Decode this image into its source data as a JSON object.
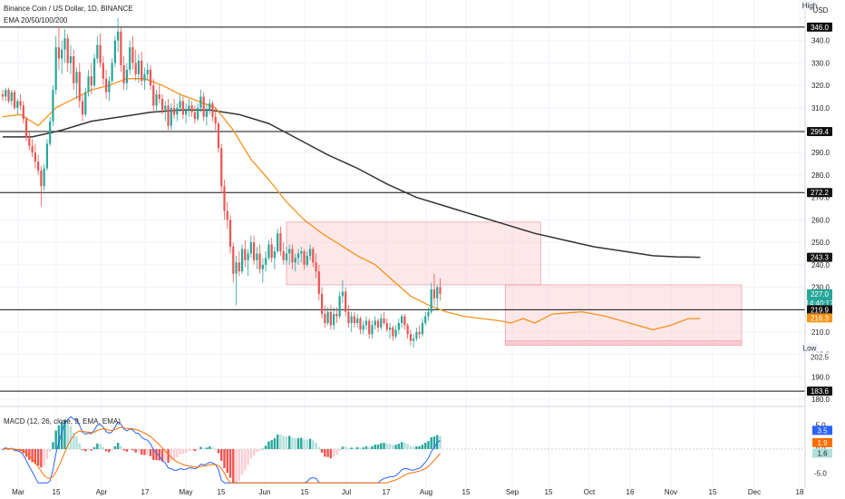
{
  "header": {
    "title": "Binance Coin / US Dollar, 1D, BINANCE",
    "indicator": "EMA 20/50/100/200",
    "currency": "USD",
    "high_tag": "High",
    "low_tag": "Low"
  },
  "colors": {
    "up": "#26a69a",
    "down": "#ef5350",
    "ema_short": "#f7931a",
    "ema_long": "#333333",
    "zone_fill": "#f8c9cf",
    "zone_stroke": "#e88a96",
    "macd_line": "#2962ff",
    "signal_line": "#ff6d00"
  },
  "chart_data": {
    "type": "candlestick",
    "price_axis": {
      "min": 180,
      "max": 350,
      "ticks": [
        180,
        190,
        200,
        210,
        220,
        230,
        240,
        250,
        260,
        270,
        280,
        290,
        300,
        310,
        320,
        330,
        340
      ]
    },
    "date_axis": {
      "labels": [
        "Mar",
        "15",
        "Apr",
        "17",
        "May",
        "15",
        "Jun",
        "15",
        "Jul",
        "17",
        "Aug",
        "15",
        "Sep",
        "15",
        "Oct",
        "16",
        "Nov",
        "15",
        "Dec",
        "18"
      ]
    },
    "horizontal_levels": [
      346.0,
      299.4,
      272.2,
      219.9,
      183.6
    ],
    "price_tags": [
      {
        "label": "High",
        "value": 350.5,
        "kind": "high"
      },
      {
        "label": "346.0",
        "value": 346.0,
        "kind": "level"
      },
      {
        "label": "299.4",
        "value": 299.4,
        "kind": "level"
      },
      {
        "label": "272.2",
        "value": 272.2,
        "kind": "level"
      },
      {
        "label": "243.3",
        "value": 243.3,
        "kind": "ema200"
      },
      {
        "label": "227.0",
        "value": 227.0,
        "kind": "last",
        "sub": "14:40:17"
      },
      {
        "label": "219.9",
        "value": 219.9,
        "kind": "level"
      },
      {
        "label": "216.3",
        "value": 216.3,
        "kind": "ema50"
      },
      {
        "label": "202.5",
        "value": 202.5,
        "kind": "low_value"
      },
      {
        "label": "Low",
        "value": 202.5,
        "kind": "low"
      },
      {
        "label": "183.6",
        "value": 183.6,
        "kind": "level"
      }
    ],
    "zones": [
      {
        "from_day": 96,
        "to_day": 182,
        "low": 231,
        "high": 259,
        "type": "range"
      },
      {
        "from_day": 170,
        "to_day": 250,
        "low": 205,
        "high": 231,
        "type": "range"
      },
      {
        "from_day": 170,
        "to_day": 250,
        "low": 204,
        "high": 206,
        "type": "support"
      }
    ],
    "candles": [
      [
        0,
        316,
        318,
        313,
        315
      ],
      [
        1,
        315,
        319,
        313,
        318
      ],
      [
        2,
        318,
        319,
        312,
        313
      ],
      [
        3,
        313,
        318,
        311,
        317
      ],
      [
        4,
        317,
        318,
        309,
        310
      ],
      [
        5,
        310,
        314,
        307,
        313
      ],
      [
        6,
        313,
        316,
        309,
        311
      ],
      [
        7,
        311,
        313,
        303,
        305
      ],
      [
        8,
        305,
        306,
        295,
        297
      ],
      [
        9,
        297,
        299,
        291,
        293
      ],
      [
        10,
        293,
        296,
        288,
        290
      ],
      [
        11,
        290,
        294,
        283,
        286
      ],
      [
        12,
        286,
        289,
        280,
        282
      ],
      [
        13,
        282,
        284,
        266,
        275
      ],
      [
        14,
        275,
        285,
        273,
        283
      ],
      [
        15,
        283,
        296,
        282,
        294
      ],
      [
        16,
        294,
        306,
        293,
        304
      ],
      [
        17,
        304,
        320,
        302,
        318
      ],
      [
        18,
        318,
        342,
        316,
        337
      ],
      [
        19,
        337,
        346,
        327,
        332
      ],
      [
        20,
        332,
        340,
        325,
        336
      ],
      [
        21,
        336,
        345,
        330,
        341
      ],
      [
        22,
        341,
        343,
        326,
        330
      ],
      [
        23,
        330,
        338,
        325,
        333
      ],
      [
        24,
        333,
        336,
        318,
        321
      ],
      [
        25,
        321,
        328,
        314,
        326
      ],
      [
        26,
        326,
        330,
        310,
        313
      ],
      [
        27,
        313,
        316,
        304,
        307
      ],
      [
        28,
        307,
        319,
        306,
        317
      ],
      [
        29,
        317,
        327,
        315,
        324
      ],
      [
        30,
        324,
        330,
        316,
        320
      ],
      [
        31,
        320,
        334,
        319,
        332
      ],
      [
        32,
        332,
        342,
        330,
        338
      ],
      [
        33,
        338,
        343,
        328,
        330
      ],
      [
        34,
        330,
        333,
        320,
        323
      ],
      [
        35,
        323,
        327,
        314,
        317
      ],
      [
        36,
        317,
        324,
        313,
        322
      ],
      [
        37,
        322,
        332,
        321,
        330
      ],
      [
        38,
        330,
        342,
        328,
        340
      ],
      [
        39,
        340,
        350,
        335,
        344
      ],
      [
        40,
        344,
        346,
        326,
        329
      ],
      [
        41,
        329,
        333,
        318,
        321
      ],
      [
        42,
        321,
        330,
        318,
        327
      ],
      [
        43,
        327,
        340,
        325,
        337
      ],
      [
        44,
        337,
        342,
        327,
        330
      ],
      [
        45,
        330,
        336,
        322,
        325
      ],
      [
        46,
        325,
        334,
        321,
        331
      ],
      [
        47,
        331,
        335,
        320,
        322
      ],
      [
        48,
        322,
        328,
        318,
        325
      ],
      [
        49,
        325,
        330,
        322,
        327
      ],
      [
        50,
        327,
        329,
        318,
        320
      ],
      [
        51,
        320,
        323,
        308,
        311
      ],
      [
        52,
        311,
        318,
        308,
        316
      ],
      [
        53,
        316,
        320,
        312,
        314
      ],
      [
        54,
        314,
        316,
        307,
        309
      ],
      [
        55,
        309,
        313,
        304,
        311
      ],
      [
        56,
        311,
        314,
        300,
        302
      ],
      [
        57,
        302,
        312,
        300,
        310
      ],
      [
        58,
        310,
        314,
        305,
        307
      ],
      [
        59,
        307,
        312,
        304,
        310
      ],
      [
        60,
        310,
        316,
        308,
        313
      ],
      [
        61,
        313,
        315,
        305,
        307
      ],
      [
        62,
        307,
        312,
        303,
        309
      ],
      [
        63,
        309,
        314,
        306,
        311
      ],
      [
        64,
        311,
        313,
        306,
        308
      ],
      [
        65,
        308,
        311,
        303,
        305
      ],
      [
        66,
        305,
        312,
        304,
        310
      ],
      [
        67,
        310,
        318,
        308,
        315
      ],
      [
        68,
        315,
        317,
        304,
        306
      ],
      [
        69,
        306,
        312,
        302,
        309
      ],
      [
        70,
        309,
        314,
        307,
        312
      ],
      [
        71,
        312,
        313,
        304,
        306
      ],
      [
        72,
        306,
        310,
        300,
        303
      ],
      [
        73,
        303,
        304,
        290,
        292
      ],
      [
        74,
        292,
        294,
        272,
        275
      ],
      [
        75,
        275,
        278,
        260,
        264
      ],
      [
        76,
        264,
        268,
        256,
        260
      ],
      [
        77,
        260,
        262,
        245,
        248
      ],
      [
        78,
        248,
        250,
        232,
        236
      ],
      [
        79,
        236,
        244,
        222,
        241
      ],
      [
        80,
        241,
        246,
        235,
        237
      ],
      [
        81,
        237,
        249,
        236,
        247
      ],
      [
        82,
        247,
        251,
        239,
        242
      ],
      [
        83,
        242,
        247,
        235,
        245
      ],
      [
        84,
        245,
        253,
        243,
        250
      ],
      [
        85,
        250,
        253,
        240,
        242
      ],
      [
        86,
        242,
        248,
        238,
        245
      ],
      [
        87,
        245,
        249,
        236,
        238
      ],
      [
        88,
        238,
        243,
        232,
        240
      ],
      [
        89,
        240,
        246,
        237,
        243
      ],
      [
        90,
        243,
        251,
        242,
        249
      ],
      [
        91,
        249,
        252,
        241,
        243
      ],
      [
        92,
        243,
        248,
        238,
        246
      ],
      [
        93,
        246,
        256,
        245,
        254
      ],
      [
        94,
        254,
        257,
        244,
        246
      ],
      [
        95,
        246,
        250,
        240,
        242
      ],
      [
        96,
        242,
        248,
        240,
        245
      ],
      [
        97,
        245,
        249,
        240,
        247
      ],
      [
        98,
        247,
        249,
        238,
        241
      ],
      [
        99,
        241,
        245,
        237,
        243
      ],
      [
        100,
        243,
        247,
        240,
        245
      ],
      [
        101,
        245,
        248,
        241,
        246
      ],
      [
        102,
        246,
        247,
        238,
        240
      ],
      [
        103,
        240,
        246,
        239,
        244
      ],
      [
        104,
        244,
        249,
        242,
        247
      ],
      [
        105,
        247,
        248,
        239,
        241
      ],
      [
        106,
        241,
        245,
        234,
        237
      ],
      [
        107,
        237,
        240,
        224,
        227
      ],
      [
        108,
        227,
        230,
        216,
        218
      ],
      [
        109,
        218,
        222,
        212,
        214
      ],
      [
        110,
        214,
        221,
        213,
        219
      ],
      [
        111,
        219,
        222,
        211,
        213
      ],
      [
        112,
        213,
        221,
        211,
        218
      ],
      [
        113,
        218,
        221,
        214,
        217
      ],
      [
        114,
        217,
        228,
        216,
        226
      ],
      [
        115,
        226,
        233,
        223,
        228
      ],
      [
        116,
        228,
        230,
        217,
        219
      ],
      [
        117,
        219,
        222,
        212,
        214
      ],
      [
        118,
        214,
        219,
        210,
        217
      ],
      [
        119,
        217,
        219,
        212,
        214
      ],
      [
        120,
        214,
        218,
        212,
        216
      ],
      [
        121,
        216,
        217,
        209,
        211
      ],
      [
        122,
        211,
        215,
        209,
        213
      ],
      [
        123,
        213,
        217,
        211,
        215
      ],
      [
        124,
        215,
        216,
        207,
        209
      ],
      [
        125,
        209,
        215,
        207,
        213
      ],
      [
        126,
        213,
        217,
        211,
        215
      ],
      [
        127,
        215,
        216,
        210,
        212
      ],
      [
        128,
        212,
        218,
        211,
        216
      ],
      [
        129,
        216,
        219,
        213,
        214
      ],
      [
        130,
        214,
        216,
        210,
        211
      ],
      [
        131,
        211,
        214,
        207,
        212
      ],
      [
        132,
        212,
        213,
        206,
        208
      ],
      [
        133,
        208,
        213,
        207,
        211
      ],
      [
        134,
        211,
        216,
        209,
        214
      ],
      [
        135,
        214,
        218,
        212,
        217
      ],
      [
        136,
        217,
        218,
        211,
        213
      ],
      [
        137,
        213,
        214,
        207,
        209
      ],
      [
        138,
        209,
        211,
        204,
        206
      ],
      [
        139,
        206,
        209,
        203,
        207
      ],
      [
        140,
        207,
        212,
        206,
        210
      ],
      [
        141,
        210,
        213,
        207,
        209
      ],
      [
        142,
        209,
        216,
        208,
        214
      ],
      [
        143,
        214,
        219,
        213,
        217
      ],
      [
        144,
        217,
        221,
        215,
        219
      ],
      [
        145,
        219,
        232,
        218,
        229
      ],
      [
        146,
        229,
        236,
        222,
        225
      ],
      [
        147,
        225,
        231,
        220,
        230
      ],
      [
        148,
        230,
        234,
        224,
        227
      ]
    ],
    "ema_short": [
      [
        0,
        306
      ],
      [
        6,
        307
      ],
      [
        12,
        302
      ],
      [
        18,
        310
      ],
      [
        24,
        314
      ],
      [
        30,
        318
      ],
      [
        36,
        320
      ],
      [
        42,
        323
      ],
      [
        48,
        323
      ],
      [
        54,
        320
      ],
      [
        60,
        316
      ],
      [
        66,
        313
      ],
      [
        72,
        310
      ],
      [
        78,
        300
      ],
      [
        84,
        287
      ],
      [
        90,
        278
      ],
      [
        96,
        268
      ],
      [
        102,
        260
      ],
      [
        108,
        254
      ],
      [
        114,
        249
      ],
      [
        120,
        244
      ],
      [
        126,
        240
      ],
      [
        132,
        233
      ],
      [
        138,
        226
      ],
      [
        144,
        222
      ],
      [
        150,
        219
      ],
      [
        156,
        217
      ],
      [
        162,
        216
      ],
      [
        168,
        215
      ],
      [
        172,
        214
      ],
      [
        176,
        216
      ],
      [
        180,
        214
      ],
      [
        186,
        218
      ],
      [
        196,
        219
      ],
      [
        204,
        217
      ],
      [
        212,
        214
      ],
      [
        220,
        211
      ],
      [
        226,
        213
      ],
      [
        232,
        216
      ],
      [
        236,
        216
      ]
    ],
    "ema_long": [
      [
        0,
        297
      ],
      [
        10,
        297
      ],
      [
        20,
        300
      ],
      [
        30,
        304
      ],
      [
        40,
        306
      ],
      [
        50,
        308
      ],
      [
        60,
        309
      ],
      [
        70,
        309
      ],
      [
        80,
        307
      ],
      [
        90,
        303
      ],
      [
        100,
        296
      ],
      [
        110,
        289
      ],
      [
        120,
        283
      ],
      [
        130,
        276
      ],
      [
        140,
        270
      ],
      [
        150,
        266
      ],
      [
        160,
        262
      ],
      [
        170,
        258
      ],
      [
        180,
        254
      ],
      [
        190,
        251
      ],
      [
        200,
        248
      ],
      [
        210,
        246
      ],
      [
        220,
        244
      ],
      [
        228,
        243.5
      ],
      [
        236,
        243.3
      ]
    ],
    "macd": {
      "axis": {
        "min": -7.5,
        "max": 7.5,
        "ticks": [
          5.0,
          0.0,
          -5.0
        ]
      },
      "tags": [
        {
          "label": "3.5",
          "value": 3.5,
          "kind": "macd"
        },
        {
          "label": "1.9",
          "value": 1.9,
          "kind": "signal"
        },
        {
          "label": "1.6",
          "value": 1.6,
          "kind": "hist"
        }
      ],
      "title": "MACD (12, 26, close, 9, EMA, EMA)"
    }
  }
}
